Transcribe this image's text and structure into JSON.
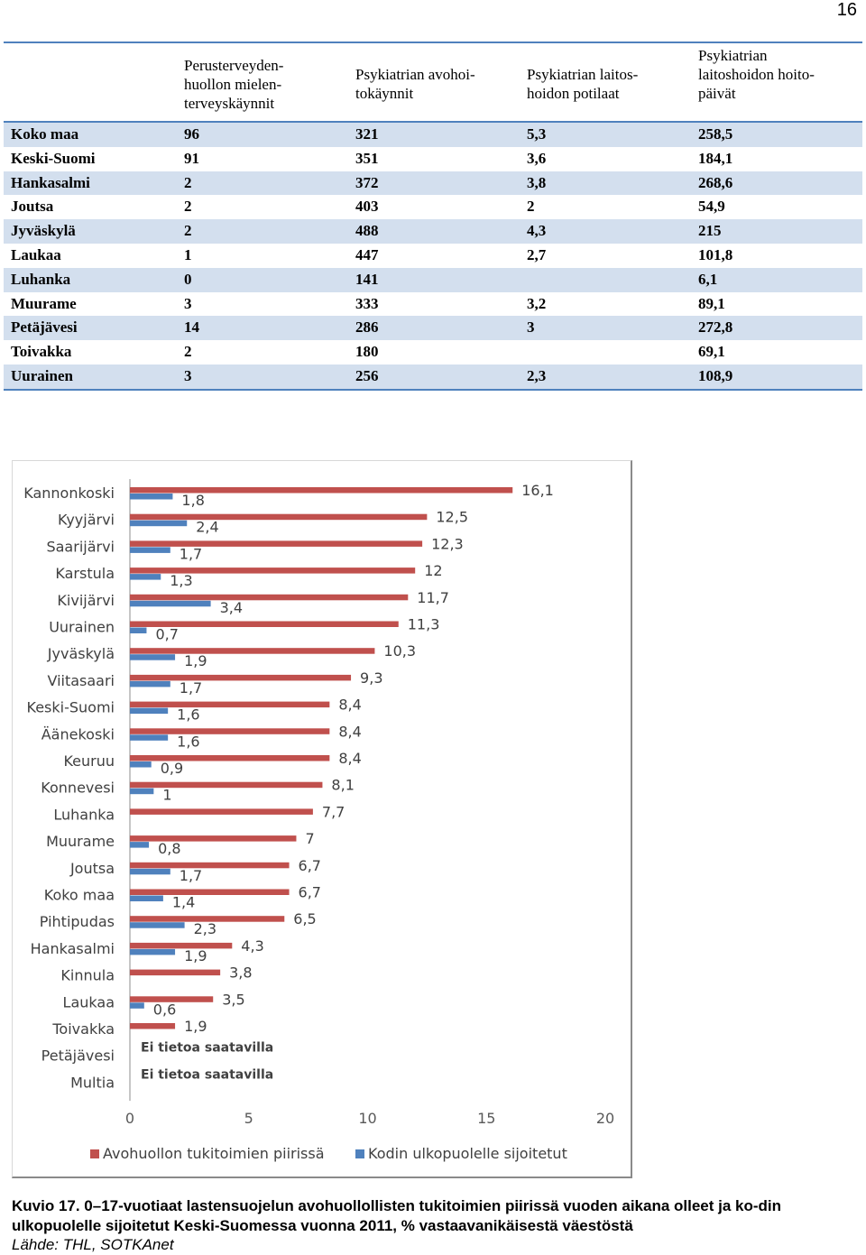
{
  "page_number": "16",
  "table": {
    "headers": [
      "",
      "Perusterveyden-\nhuollon mielen-\nterveyskäynnit",
      "Psykiatrian avohoi-\ntokäynnit",
      "Psykiatrian laitos-\nhoidon potilaat",
      "Psykiatrian\nlaitoshoidon hoito-\npäivät"
    ],
    "rows": [
      [
        "Koko maa",
        "96",
        "321",
        "5,3",
        "258,5"
      ],
      [
        "Keski-Suomi",
        "91",
        "351",
        "3,6",
        "184,1"
      ],
      [
        "Hankasalmi",
        "2",
        "372",
        "3,8",
        "268,6"
      ],
      [
        "Joutsa",
        "2",
        "403",
        "2",
        "54,9"
      ],
      [
        "Jyväskylä",
        "2",
        "488",
        "4,3",
        "215"
      ],
      [
        "Laukaa",
        "1",
        "447",
        "2,7",
        "101,8"
      ],
      [
        "Luhanka",
        "0",
        "141",
        "",
        "6,1"
      ],
      [
        "Muurame",
        "3",
        "333",
        "3,2",
        "89,1"
      ],
      [
        "Petäjävesi",
        "14",
        "286",
        "3",
        "272,8"
      ],
      [
        "Toivakka",
        "2",
        "180",
        "",
        "69,1"
      ],
      [
        "Uurainen",
        "3",
        "256",
        "2,3",
        "108,9"
      ]
    ]
  },
  "chart_data": {
    "type": "bar",
    "orientation": "horizontal",
    "categories": [
      "Kannonkoski",
      "Kyyjärvi",
      "Saarijärvi",
      "Karstula",
      "Kivijärvi",
      "Uurainen",
      "Jyväskylä",
      "Viitasaari",
      "Keski-Suomi",
      "Äänekoski",
      "Keuruu",
      "Konnevesi",
      "Luhanka",
      "Muurame",
      "Joutsa",
      "Koko maa",
      "Pihtipudas",
      "Hankasalmi",
      "Kinnula",
      "Laukaa",
      "Toivakka",
      "Petäjävesi",
      "Multia"
    ],
    "series": [
      {
        "name": "Avohuollon tukitoimien piirissä",
        "color": "#c0504d",
        "values": [
          16.1,
          12.5,
          12.3,
          12,
          11.7,
          11.3,
          10.3,
          9.3,
          8.4,
          8.4,
          8.4,
          8.1,
          7.7,
          7,
          6.7,
          6.7,
          6.5,
          4.3,
          3.8,
          3.5,
          1.9,
          null,
          null
        ],
        "labels": [
          "16,1",
          "12,5",
          "12,3",
          "12",
          "11,7",
          "11,3",
          "10,3",
          "9,3",
          "8,4",
          "8,4",
          "8,4",
          "8,1",
          "7,7",
          "7",
          "6,7",
          "6,7",
          "6,5",
          "4,3",
          "3,8",
          "3,5",
          "1,9",
          "",
          ""
        ]
      },
      {
        "name": "Kodin ulkopuolelle sijoitetut",
        "color": "#4f81bd",
        "values": [
          1.8,
          2.4,
          1.7,
          1.3,
          3.4,
          0.7,
          1.9,
          1.7,
          1.6,
          1.6,
          0.9,
          1,
          null,
          0.8,
          1.7,
          1.4,
          2.3,
          1.9,
          null,
          0.6,
          null,
          null,
          null
        ],
        "labels": [
          "1,8",
          "2,4",
          "1,7",
          "1,3",
          "3,4",
          "0,7",
          "1,9",
          "1,7",
          "1,6",
          "1,6",
          "0,9",
          "1",
          "",
          "0,8",
          "1,7",
          "1,4",
          "2,3",
          "1,9",
          "",
          "0,6",
          "",
          "",
          ""
        ]
      }
    ],
    "no_data_label": "Ei tietoa saatavilla",
    "no_data_categories": [
      "Petäjävesi",
      "Multia"
    ],
    "xlim": [
      0,
      20
    ],
    "xticks": [
      "0",
      "5",
      "10",
      "15",
      "20"
    ],
    "legend_position": "bottom",
    "grid": false
  },
  "caption": "Kuvio 17. 0–17-vuotiaat lastensuojelun avohuollollisten tukitoimien piirissä vuoden aikana olleet ja ko-din ulkopuolelle sijoitetut Keski-Suomessa vuonna 2011, % vastaavanikäisestä väestöstä",
  "source": "Lähde: THL, SOTKAnet"
}
